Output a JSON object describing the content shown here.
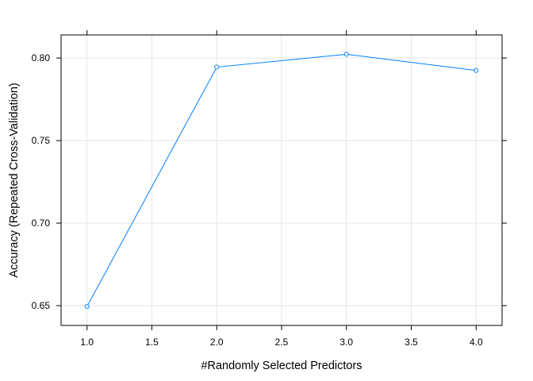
{
  "chart_data": {
    "type": "line",
    "title": "",
    "xlabel": "#Randomly Selected Predictors",
    "ylabel": "Accuracy (Repeated Cross-Validation)",
    "x": [
      1,
      2,
      3,
      4
    ],
    "series": [
      {
        "values": [
          0.6495,
          0.7945,
          0.8023,
          0.7925
        ]
      }
    ],
    "xlim": [
      0.8,
      4.2
    ],
    "ylim": [
      0.638,
      0.814
    ],
    "xticks": [
      1.0,
      1.5,
      2.0,
      2.5,
      3.0,
      3.5,
      4.0
    ],
    "xtick_labels": [
      "1.0",
      "1.5",
      "2.0",
      "2.5",
      "3.0",
      "3.5",
      "4.0"
    ],
    "yticks": [
      0.65,
      0.7,
      0.75,
      0.8
    ],
    "ytick_labels": [
      "0.65",
      "0.70",
      "0.75",
      "0.80"
    ],
    "top_ticks": [
      1,
      2,
      3,
      4
    ],
    "grid": true,
    "legend": "none",
    "colors": {
      "line": "#0080ff",
      "grid": "#e6e6e6",
      "frame": "#000000"
    }
  }
}
